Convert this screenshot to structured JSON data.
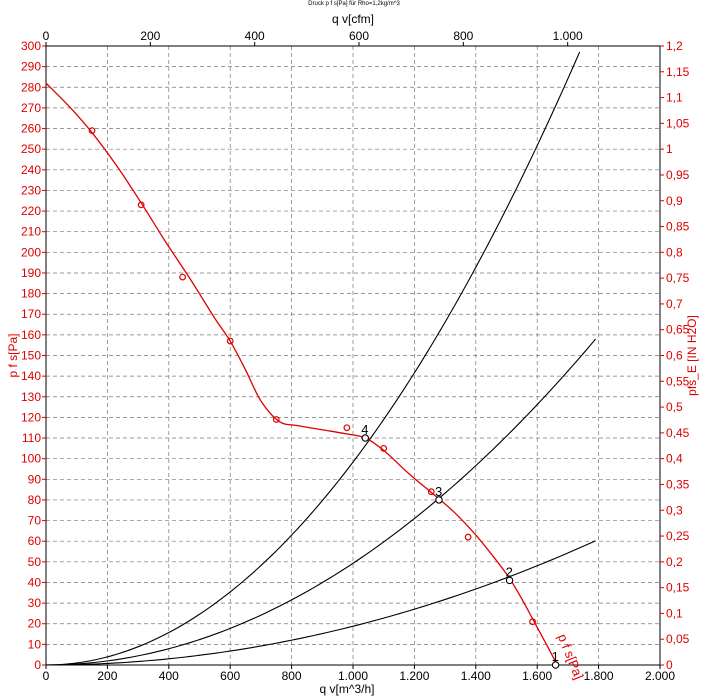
{
  "chart_data": {
    "type": "line",
    "title": "Druck p f s[Pa] für Rho=1,2kg/m^3",
    "x_bottom": {
      "label": "q v[m^3/h]",
      "ticks": [
        0,
        200,
        400,
        600,
        800,
        1000,
        1200,
        1400,
        1600,
        1800,
        2000
      ],
      "tick_labels": [
        "0",
        "200",
        "400",
        "600",
        "800",
        "1.000",
        "1.200",
        "1.400",
        "1.600",
        "1.800",
        "2.000"
      ],
      "range": [
        0,
        2000
      ]
    },
    "x_top": {
      "label": "q v[cfm]",
      "ticks": [
        0,
        200,
        400,
        600,
        800,
        1000
      ],
      "tick_labels": [
        "0",
        "200",
        "400",
        "600",
        "800",
        "1.000"
      ],
      "range": [
        0,
        1177
      ]
    },
    "y_left": {
      "label": "p f s[Pa]",
      "range": [
        0,
        300
      ],
      "step": 10
    },
    "y_right": {
      "label": "pfs_E [IN H2O]",
      "range": [
        0,
        1.2
      ],
      "step": 0.05,
      "tick_labels": [
        "0",
        "0,05",
        "0,1",
        "0,15",
        "0,2",
        "0,25",
        "0,3",
        "0,35",
        "0,4",
        "0,45",
        "0,5",
        "0,55",
        "0,6",
        "0,65",
        "0,7",
        "0,75",
        "0,8",
        "0,85",
        "0,9",
        "0,95",
        "1",
        "1,05",
        "1,1",
        "1,15",
        "1,2"
      ]
    },
    "grid": true,
    "colors": {
      "fan_curve": "#e00000",
      "system_curves": "#000000",
      "axis_left_right": "#e00000",
      "axis_top_bottom": "#000000"
    },
    "series": [
      {
        "kind": "fan_curve",
        "color": "#e00000",
        "label": "p f s[Pa]",
        "x": [
          0,
          80,
          150,
          230,
          310,
          390,
          470,
          550,
          600,
          650,
          700,
          760,
          820,
          900,
          980,
          1040,
          1100,
          1180,
          1260,
          1330,
          1400,
          1460,
          1510,
          1550,
          1590,
          1630,
          1665
        ],
        "y": [
          282,
          270,
          258,
          242,
          224,
          205,
          187,
          168,
          157,
          143,
          128,
          118,
          116,
          114,
          112,
          110,
          104,
          93,
          83,
          74,
          63,
          52,
          42,
          32,
          21,
          10,
          0
        ],
        "markers_x": [
          150,
          310,
          445,
          600,
          750,
          980,
          1100,
          1255,
          1375,
          1585
        ],
        "markers_y": [
          259,
          223,
          188,
          157,
          119,
          115,
          105,
          84,
          62,
          21
        ]
      },
      {
        "kind": "system_curve",
        "color": "#000000",
        "x": [
          0,
          200,
          400,
          600,
          800,
          1000,
          1040,
          1200,
          1400,
          1600,
          1800,
          1905
        ],
        "y": [
          0,
          4,
          16,
          36,
          64,
          100,
          110,
          144,
          196,
          256,
          324,
          290
        ]
      },
      {
        "kind": "system_curve",
        "color": "#000000",
        "x": [
          0,
          200,
          400,
          600,
          800,
          1000,
          1200,
          1280,
          1400,
          1600,
          1790
        ],
        "y": [
          0,
          2,
          8,
          18,
          32,
          49,
          70,
          80,
          96,
          125,
          156
        ]
      },
      {
        "kind": "system_curve",
        "color": "#000000",
        "x": [
          0,
          200,
          400,
          600,
          800,
          1000,
          1200,
          1400,
          1510,
          1600,
          1790
        ],
        "y": [
          0,
          1,
          3,
          7,
          12,
          18,
          25,
          35,
          41,
          45,
          55
        ]
      }
    ],
    "operating_points": [
      {
        "label": "1",
        "x": 1660,
        "y": 0
      },
      {
        "label": "2",
        "x": 1510,
        "y": 41
      },
      {
        "label": "3",
        "x": 1280,
        "y": 80
      },
      {
        "label": "4",
        "x": 1040,
        "y": 110
      }
    ]
  }
}
